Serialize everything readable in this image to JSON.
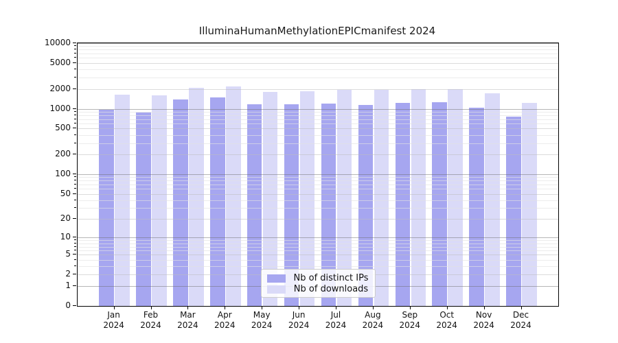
{
  "title": "IlluminaHumanMethylationEPICmanifest 2024",
  "chart_data": {
    "type": "bar",
    "title": "IlluminaHumanMethylationEPICmanifest 2024",
    "categories": [
      "Jan",
      "Feb",
      "Mar",
      "Apr",
      "May",
      "Jun",
      "Jul",
      "Aug",
      "Sep",
      "Oct",
      "Nov",
      "Dec"
    ],
    "category_year": "2024",
    "series": [
      {
        "name": "Nb of distinct IPs",
        "color": "#a6a6f0",
        "values": [
          970,
          890,
          1390,
          1480,
          1180,
          1170,
          1210,
          1140,
          1230,
          1250,
          1030,
          760
        ]
      },
      {
        "name": "Nb of downloads",
        "color": "#dadaf8",
        "values": [
          1650,
          1600,
          2100,
          2200,
          1810,
          1840,
          1950,
          1950,
          2000,
          2000,
          1740,
          1230
        ]
      }
    ],
    "xlabel": "",
    "ylabel": "",
    "yscale": "log1p",
    "ylim": [
      0,
      10000
    ],
    "yticks": [
      0,
      1,
      2,
      5,
      10,
      20,
      50,
      100,
      200,
      500,
      1000,
      2000,
      5000,
      10000
    ],
    "grid": true,
    "legend_position": "bottom-center"
  }
}
